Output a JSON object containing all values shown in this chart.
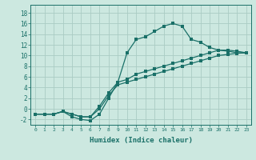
{
  "xlabel": "Humidex (Indice chaleur)",
  "background_color": "#cce8e0",
  "grid_color": "#aaccc4",
  "line_color": "#1a7068",
  "xlim": [
    -0.5,
    23.5
  ],
  "ylim": [
    -3.0,
    19.5
  ],
  "xticks": [
    0,
    1,
    2,
    3,
    4,
    5,
    6,
    7,
    8,
    9,
    10,
    11,
    12,
    13,
    14,
    15,
    16,
    17,
    18,
    19,
    20,
    21,
    22,
    23
  ],
  "yticks": [
    -2,
    0,
    2,
    4,
    6,
    8,
    10,
    12,
    14,
    16,
    18
  ],
  "line1_x": [
    0,
    1,
    2,
    3,
    4,
    5,
    6,
    7,
    8,
    9,
    10,
    11,
    12,
    13,
    14,
    15,
    16,
    17,
    18,
    19,
    20,
    21,
    22,
    23
  ],
  "line1_y": [
    -1,
    -1,
    -1,
    -0.5,
    -1.5,
    -2,
    -2.2,
    -1,
    2,
    5,
    10.5,
    13,
    13.5,
    14.5,
    15.5,
    16,
    15.5,
    13,
    12.5,
    11.5,
    11,
    10.8,
    10.5,
    10.5
  ],
  "line2_x": [
    0,
    1,
    2,
    3,
    4,
    5,
    6,
    7,
    8,
    9,
    10,
    11,
    12,
    13,
    14,
    15,
    16,
    17,
    18,
    19,
    20,
    21,
    22,
    23
  ],
  "line2_y": [
    -1,
    -1,
    -1,
    -0.5,
    -1,
    -1.5,
    -1.5,
    0,
    2.5,
    4.5,
    5,
    5.5,
    6,
    6.5,
    7,
    7.5,
    8.0,
    8.5,
    9,
    9.5,
    10,
    10.2,
    10.4,
    10.5
  ],
  "line3_x": [
    0,
    1,
    2,
    3,
    4,
    5,
    6,
    7,
    8,
    9,
    10,
    11,
    12,
    13,
    14,
    15,
    16,
    17,
    18,
    19,
    20,
    21,
    22,
    23
  ],
  "line3_y": [
    -1,
    -1,
    -1,
    -0.5,
    -1,
    -1.5,
    -1.5,
    0.5,
    3,
    5,
    5.5,
    6.5,
    7,
    7.5,
    8,
    8.5,
    9,
    9.5,
    10,
    10.5,
    11,
    11,
    10.8,
    10.5
  ]
}
